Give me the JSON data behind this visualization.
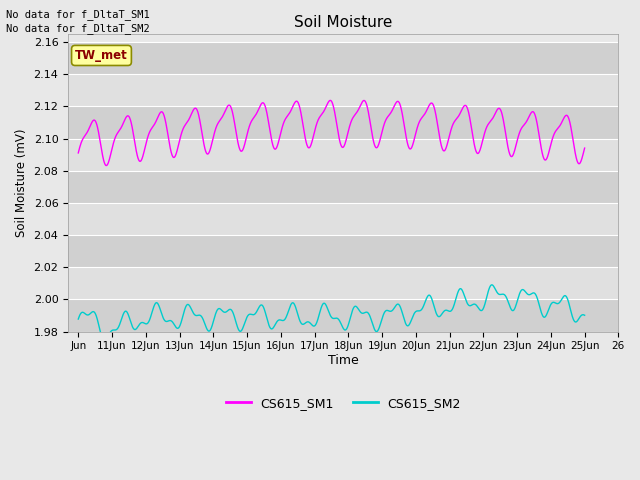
{
  "title": "Soil Moisture",
  "ylabel": "Soil Moisture (mV)",
  "xlabel": "Time",
  "ylim": [
    1.98,
    2.165
  ],
  "xtick_labels": [
    "Jun",
    "11Jun",
    "12Jun",
    "13Jun",
    "14Jun",
    "15Jun",
    "16Jun",
    "17Jun",
    "18Jun",
    "19Jun",
    "20Jun",
    "21Jun",
    "22Jun",
    "23Jun",
    "24Jun",
    "25Jun",
    "26"
  ],
  "ytick_positions": [
    1.98,
    2.0,
    2.02,
    2.04,
    2.06,
    2.08,
    2.1,
    2.12,
    2.14,
    2.16
  ],
  "color_sm1": "#FF00FF",
  "color_sm2": "#00CCCC",
  "background_color": "#E8E8E8",
  "band_color_light": "#E0E0E0",
  "band_color_dark": "#D0D0D0",
  "grid_color": "#FFFFFF",
  "no_data_text1": "No data for f_DltaT_SM1",
  "no_data_text2": "No data for f_DltaT_SM2",
  "tw_met_label": "TW_met",
  "tw_met_bg": "#FFFFA0",
  "tw_met_border": "#8B8B00",
  "tw_met_fg": "#8B0000",
  "legend_sm1": "CS615_SM1",
  "legend_sm2": "CS615_SM2",
  "fig_bg": "#E8E8E8"
}
